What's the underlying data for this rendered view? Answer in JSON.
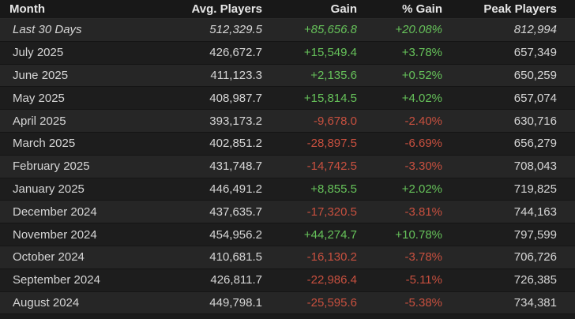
{
  "columns": {
    "month": "Month",
    "avg": "Avg. Players",
    "gain": "Gain",
    "pct": "% Gain",
    "peak": "Peak Players"
  },
  "colors": {
    "positive": "#66c25a",
    "negative": "#c8503f"
  },
  "rows": [
    {
      "month": "Last 30 Days",
      "avg": "512,329.5",
      "gain": "+85,656.8",
      "pct": "+20.08%",
      "peak": "812,994",
      "trend": "pos"
    },
    {
      "month": "July 2025",
      "avg": "426,672.7",
      "gain": "+15,549.4",
      "pct": "+3.78%",
      "peak": "657,349",
      "trend": "pos"
    },
    {
      "month": "June 2025",
      "avg": "411,123.3",
      "gain": "+2,135.6",
      "pct": "+0.52%",
      "peak": "650,259",
      "trend": "pos"
    },
    {
      "month": "May 2025",
      "avg": "408,987.7",
      "gain": "+15,814.5",
      "pct": "+4.02%",
      "peak": "657,074",
      "trend": "pos"
    },
    {
      "month": "April 2025",
      "avg": "393,173.2",
      "gain": "-9,678.0",
      "pct": "-2.40%",
      "peak": "630,716",
      "trend": "neg"
    },
    {
      "month": "March 2025",
      "avg": "402,851.2",
      "gain": "-28,897.5",
      "pct": "-6.69%",
      "peak": "656,279",
      "trend": "neg"
    },
    {
      "month": "February 2025",
      "avg": "431,748.7",
      "gain": "-14,742.5",
      "pct": "-3.30%",
      "peak": "708,043",
      "trend": "neg"
    },
    {
      "month": "January 2025",
      "avg": "446,491.2",
      "gain": "+8,855.5",
      "pct": "+2.02%",
      "peak": "719,825",
      "trend": "pos"
    },
    {
      "month": "December 2024",
      "avg": "437,635.7",
      "gain": "-17,320.5",
      "pct": "-3.81%",
      "peak": "744,163",
      "trend": "neg"
    },
    {
      "month": "November 2024",
      "avg": "454,956.2",
      "gain": "+44,274.7",
      "pct": "+10.78%",
      "peak": "797,599",
      "trend": "pos"
    },
    {
      "month": "October 2024",
      "avg": "410,681.5",
      "gain": "-16,130.2",
      "pct": "-3.78%",
      "peak": "706,726",
      "trend": "neg"
    },
    {
      "month": "September 2024",
      "avg": "426,811.7",
      "gain": "-22,986.4",
      "pct": "-5.11%",
      "peak": "726,385",
      "trend": "neg"
    },
    {
      "month": "August 2024",
      "avg": "449,798.1",
      "gain": "-25,595.6",
      "pct": "-5.38%",
      "peak": "734,381",
      "trend": "neg"
    }
  ]
}
